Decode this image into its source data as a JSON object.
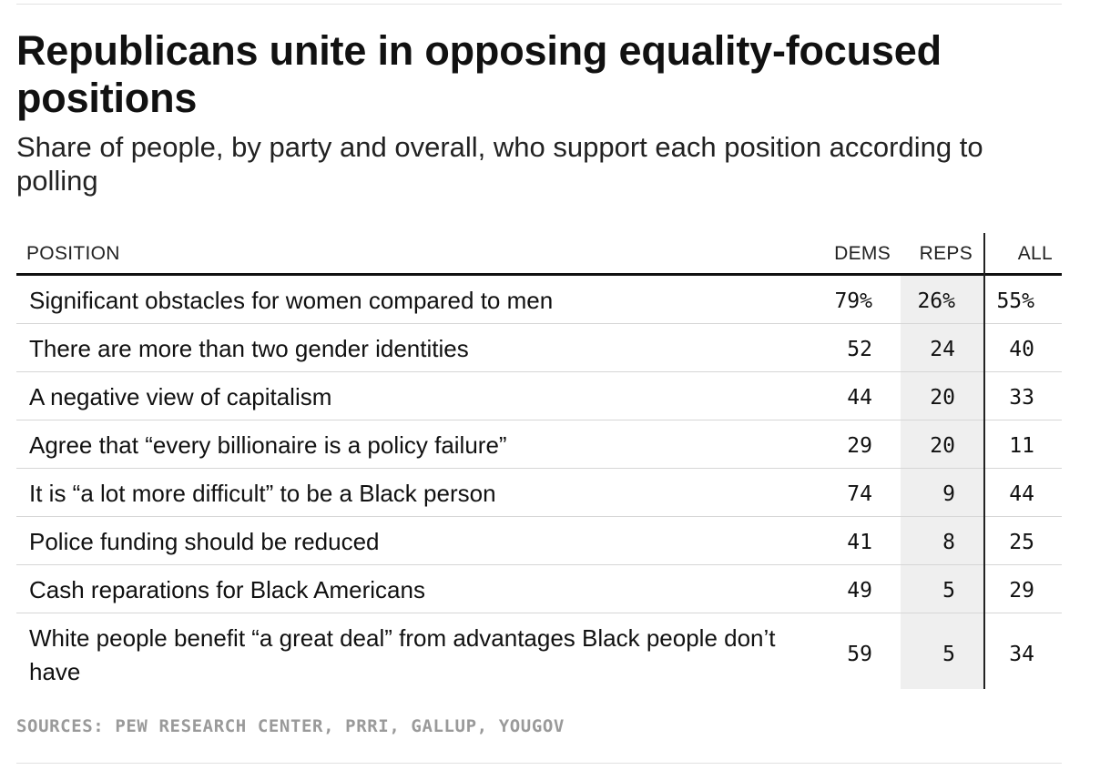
{
  "chart_data": {
    "type": "table",
    "title": "Republicans unite in opposing equality-focused positions",
    "subtitle": "Share of people, by party and overall, who support each position according to polling",
    "columns": [
      "POSITION",
      "DEMS",
      "REPS",
      "ALL"
    ],
    "rows": [
      {
        "position": "Significant obstacles for women compared to men",
        "dems": "79%",
        "reps": "26%",
        "all": "55%"
      },
      {
        "position": "There are more than two gender identities",
        "dems": "52",
        "reps": "24",
        "all": "40"
      },
      {
        "position": "A negative view of capitalism",
        "dems": "44",
        "reps": "20",
        "all": "33"
      },
      {
        "position": "Agree that “every billionaire is a policy failure”",
        "dems": "29",
        "reps": "20",
        "all": "11"
      },
      {
        "position": "It is “a lot more difficult” to be a Black person",
        "dems": "74",
        "reps": "9",
        "all": "44"
      },
      {
        "position": "Police funding should be reduced",
        "dems": "41",
        "reps": "8",
        "all": "25"
      },
      {
        "position": "Cash reparations for Black Americans",
        "dems": "49",
        "reps": "5",
        "all": "29"
      },
      {
        "position": "White people benefit “a great deal” from advantages Black people don’t have",
        "dems": "59",
        "reps": "5",
        "all": "34"
      }
    ],
    "source": "SOURCES: PEW RESEARCH CENTER, PRRI, GALLUP, YOUGOV",
    "colors": {
      "reps_highlight": "#efefef",
      "text": "#111111",
      "source_text": "#9a9a9a"
    }
  }
}
